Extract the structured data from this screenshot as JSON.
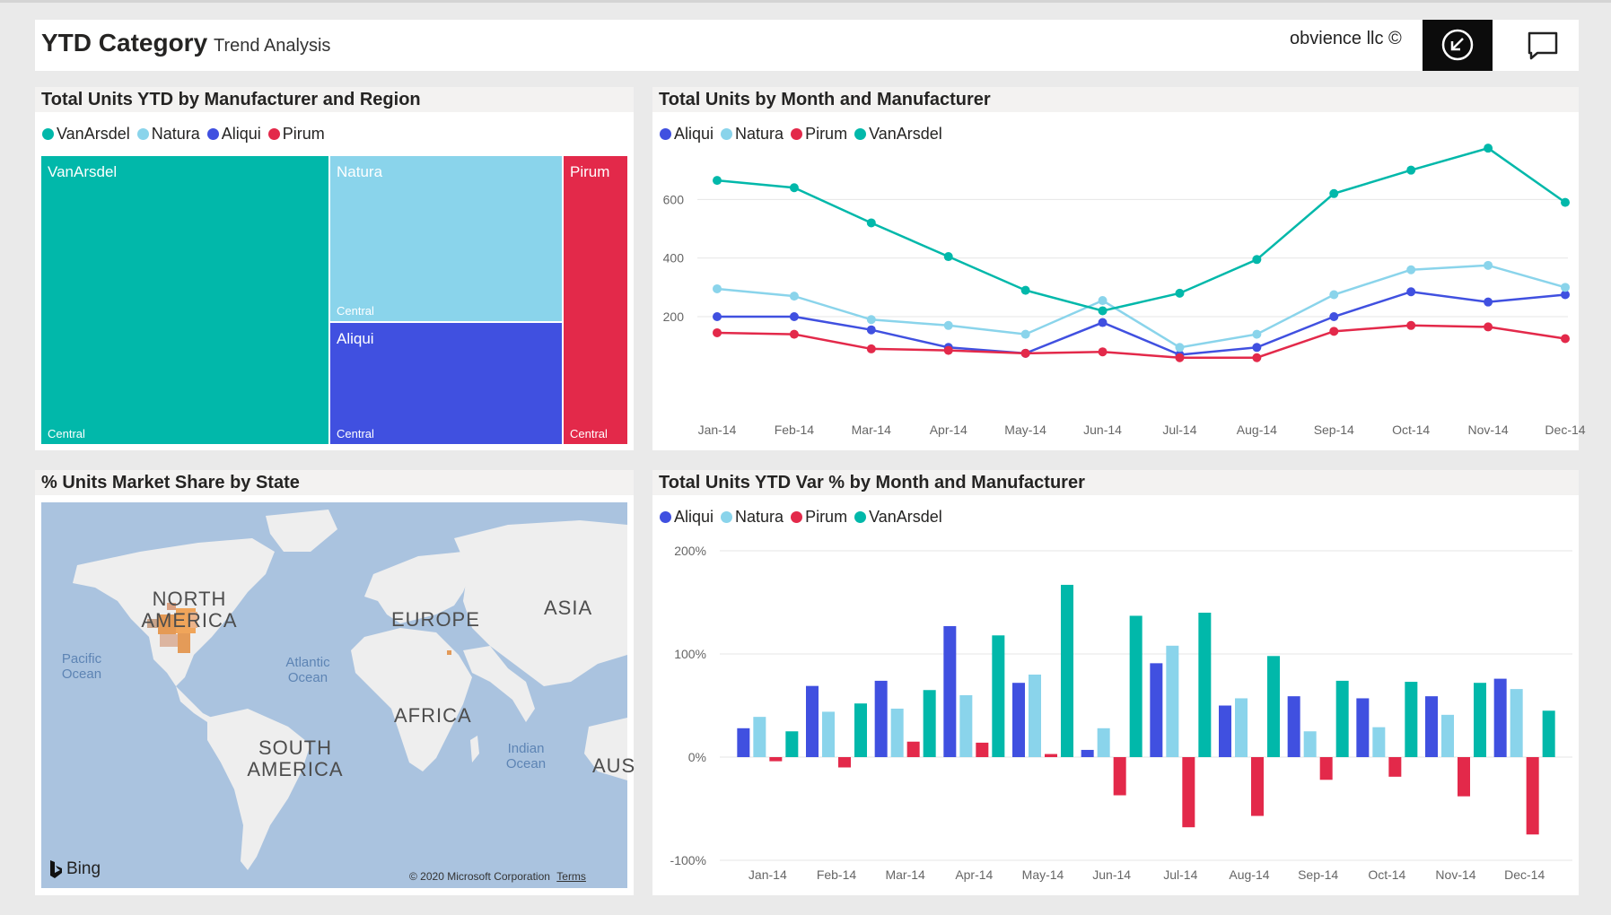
{
  "header": {
    "title": "YTD Category",
    "subtitle": "Trend Analysis",
    "company": "obvience llc ©"
  },
  "colors": {
    "VanArsdel": "#01B8AA",
    "Natura": "#8AD4EB",
    "Aliqui": "#4050E0",
    "Pirum": "#E3294A"
  },
  "icons": {
    "back": "back-arrow-circle-icon",
    "comment": "chat-bubble-icon",
    "bing": "bing-logo-icon"
  },
  "treemap": {
    "title": "Total Units YTD by Manufacturer and Region",
    "legend": [
      "VanArsdel",
      "Natura",
      "Aliqui",
      "Pirum"
    ],
    "cells": [
      {
        "manufacturer": "VanArsdel",
        "region": "Central"
      },
      {
        "manufacturer": "Natura",
        "region": "Central"
      },
      {
        "manufacturer": "Aliqui",
        "region": "Central"
      },
      {
        "manufacturer": "Pirum",
        "region": "Central"
      }
    ]
  },
  "map": {
    "title": "% Units Market Share by State",
    "continents": [
      "NORTH AMERICA",
      "EUROPE",
      "ASIA",
      "AFRICA",
      "SOUTH AMERICA",
      "AUS"
    ],
    "oceans": [
      "Pacific Ocean",
      "Atlantic Ocean",
      "Indian Ocean"
    ],
    "bing": "Bing",
    "copyright": "© 2020 Microsoft Corporation",
    "terms": "Terms"
  },
  "line_chart": {
    "title": "Total Units by Month and Manufacturer",
    "legend": [
      "Aliqui",
      "Natura",
      "Pirum",
      "VanArsdel"
    ]
  },
  "bar_chart": {
    "title": "Total Units YTD Var % by Month and Manufacturer",
    "legend": [
      "Aliqui",
      "Natura",
      "Pirum",
      "VanArsdel"
    ]
  },
  "chart_data": [
    {
      "type": "treemap",
      "title": "Total Units YTD by Manufacturer and Region",
      "legend": [
        "VanArsdel",
        "Natura",
        "Aliqui",
        "Pirum"
      ],
      "items": [
        {
          "manufacturer": "VanArsdel",
          "region": "Central",
          "share": 0.494
        },
        {
          "manufacturer": "Natura",
          "region": "Central",
          "share": 0.227
        },
        {
          "manufacturer": "Aliqui",
          "region": "Central",
          "share": 0.173
        },
        {
          "manufacturer": "Pirum",
          "region": "Central",
          "share": 0.106
        }
      ]
    },
    {
      "type": "line",
      "title": "Total Units by Month and Manufacturer",
      "categories": [
        "Jan-14",
        "Feb-14",
        "Mar-14",
        "Apr-14",
        "May-14",
        "Jun-14",
        "Jul-14",
        "Aug-14",
        "Sep-14",
        "Oct-14",
        "Nov-14",
        "Dec-14"
      ],
      "yticks": [
        200,
        400,
        600
      ],
      "ylim": [
        50,
        800
      ],
      "grid": true,
      "legend_position": "top-left",
      "series": [
        {
          "name": "Aliqui",
          "values": [
            200,
            200,
            155,
            95,
            75,
            180,
            70,
            95,
            200,
            285,
            250,
            275
          ]
        },
        {
          "name": "Natura",
          "values": [
            295,
            270,
            190,
            170,
            140,
            255,
            95,
            140,
            275,
            360,
            375,
            300
          ]
        },
        {
          "name": "Pirum",
          "values": [
            145,
            140,
            90,
            85,
            75,
            80,
            60,
            60,
            150,
            170,
            165,
            125
          ]
        },
        {
          "name": "VanArsdel",
          "values": [
            665,
            640,
            520,
            405,
            290,
            220,
            280,
            395,
            620,
            700,
            775,
            590
          ]
        }
      ]
    },
    {
      "type": "bar",
      "title": "Total Units YTD Var % by Month and Manufacturer",
      "categories": [
        "Jan-14",
        "Feb-14",
        "Mar-14",
        "Apr-14",
        "May-14",
        "Jun-14",
        "Jul-14",
        "Aug-14",
        "Sep-14",
        "Oct-14",
        "Nov-14",
        "Dec-14"
      ],
      "yticks": [
        "200%",
        "100%",
        "0%",
        "-100%"
      ],
      "ylim": [
        -100,
        200
      ],
      "grid": true,
      "legend_position": "top-left",
      "series": [
        {
          "name": "Aliqui",
          "values": [
            28,
            69,
            74,
            127,
            72,
            7,
            91,
            50,
            59,
            57,
            59,
            76
          ]
        },
        {
          "name": "Natura",
          "values": [
            39,
            44,
            47,
            60,
            80,
            28,
            108,
            57,
            25,
            29,
            41,
            66
          ]
        },
        {
          "name": "Pirum",
          "values": [
            -4,
            -10,
            15,
            14,
            3,
            -37,
            -68,
            -57,
            -22,
            -19,
            -38,
            -75
          ]
        },
        {
          "name": "VanArsdel",
          "values": [
            25,
            52,
            65,
            118,
            167,
            137,
            140,
            98,
            74,
            73,
            72,
            45
          ]
        }
      ]
    }
  ]
}
